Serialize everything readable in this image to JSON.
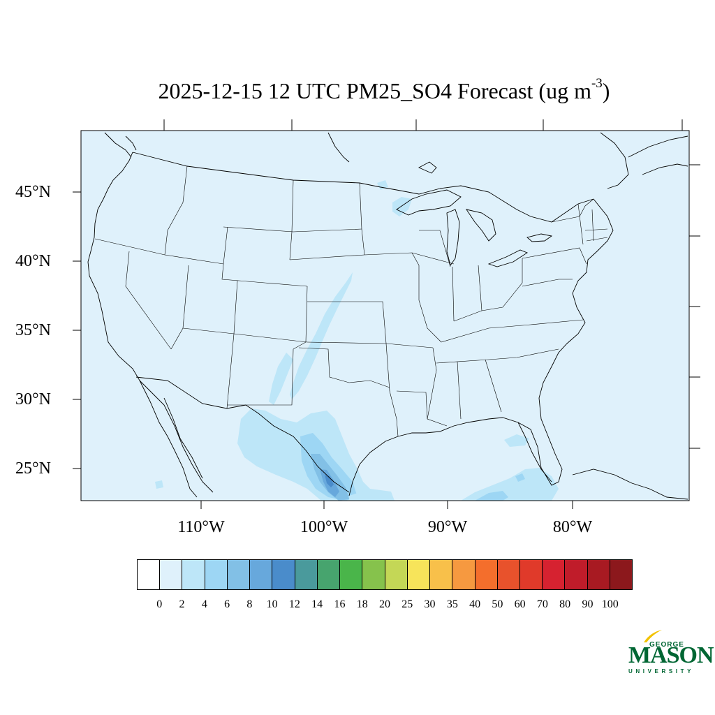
{
  "title": {
    "main": "2025-12-15 12 UTC PM25_SO4 Forecast (ug m",
    "sup": "-3",
    "close": ")"
  },
  "lat_labels": [
    "45°N",
    "40°N",
    "35°N",
    "30°N",
    "25°N"
  ],
  "lon_labels": [
    "110°W",
    "100°W",
    "90°W",
    "80°W"
  ],
  "colorbar": {
    "colors": [
      "#ffffff",
      "#dff1fb",
      "#bde6f8",
      "#9dd6f4",
      "#82c0e6",
      "#67a8dc",
      "#4a8ccb",
      "#4a9a9c",
      "#47a46e",
      "#4ab54a",
      "#86c24c",
      "#c4d756",
      "#f7e45a",
      "#f8c04a",
      "#f69940",
      "#f46e2c",
      "#e8522c",
      "#e03a2a",
      "#d62230",
      "#c01c2a",
      "#a81a22",
      "#8c181c"
    ],
    "labels": [
      "0",
      "2",
      "4",
      "6",
      "8",
      "10",
      "12",
      "14",
      "16",
      "18",
      "20",
      "25",
      "30",
      "35",
      "40",
      "50",
      "60",
      "70",
      "80",
      "90",
      "100"
    ]
  },
  "logo": {
    "line1": "GEORGE",
    "line2": "MASON",
    "line3": "UNIVERSITY",
    "color": "#006633",
    "accent": "#f2c200"
  },
  "map_colors": {
    "background": "#dff1fb",
    "level_2_4": "#bde6f8",
    "level_4_6": "#9dd6f4",
    "level_6_8": "#82c0e6",
    "level_8_10": "#67a8dc",
    "level_10_12": "#4a8ccb"
  }
}
